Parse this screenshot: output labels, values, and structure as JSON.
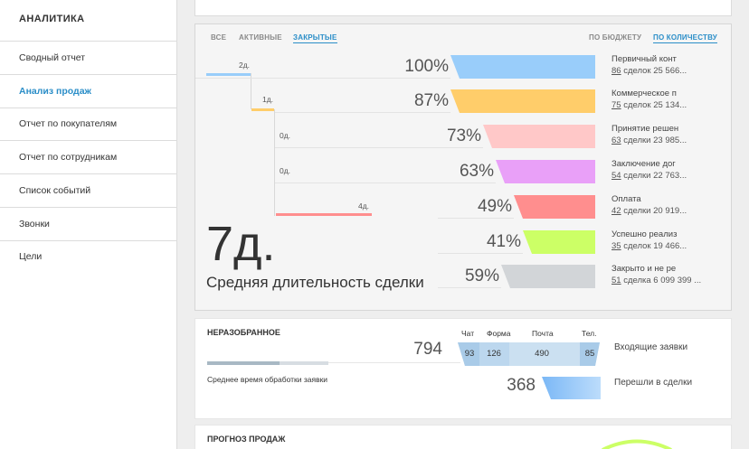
{
  "sidebar": {
    "title": "АНАЛИТИКА",
    "items": [
      {
        "label": "Сводный отчет",
        "active": false
      },
      {
        "label": "Анализ продаж",
        "active": true
      },
      {
        "label": "Отчет по покупателям",
        "active": false
      },
      {
        "label": "Отчет по сотрудникам",
        "active": false
      },
      {
        "label": "Список событий",
        "active": false
      },
      {
        "label": "Звонки",
        "active": false
      },
      {
        "label": "Цели",
        "active": false
      }
    ]
  },
  "funnel": {
    "filter_tabs": [
      "ВСЕ",
      "АКТИВНЫЕ",
      "ЗАКРЫТЫЕ"
    ],
    "active_filter": "ЗАКРЫТЫЕ",
    "mode_tabs": [
      "ПО БЮДЖЕТУ",
      "ПО КОЛИЧЕСТВУ"
    ],
    "active_mode": "ПО КОЛИЧЕСТВУ",
    "durations": [
      "2д.",
      "1д.",
      "0д.",
      "0д.",
      "4д."
    ],
    "stages": [
      {
        "percent": "100%",
        "name": "Первичный конт",
        "count": "86",
        "rest": " сделок 25 566...",
        "color": "#99cdfa"
      },
      {
        "percent": "87%",
        "name": "Коммерческое п",
        "count": "75",
        "rest": " сделок 25 134...",
        "color": "#ffcd6a"
      },
      {
        "percent": "73%",
        "name": "Принятие решен",
        "count": "63",
        "rest": " сделки 23 985...",
        "color": "#ffc8c8"
      },
      {
        "percent": "63%",
        "name": "Заключение дог",
        "count": "54",
        "rest": " сделки 22 763...",
        "color": "#e9a0f8"
      },
      {
        "percent": "49%",
        "name": "Оплата",
        "count": "42",
        "rest": " сделки 20 919...",
        "color": "#ff8e8e"
      },
      {
        "percent": "41%",
        "name": "Успешно реализ",
        "count": "35",
        "rest": " сделок 19 466...",
        "color": "#ccff66"
      },
      {
        "percent": "59%",
        "name": "Закрыто и не ре",
        "count": "51",
        "rest": " сделка 6 099 399 ...",
        "color": "#d2d5d8"
      }
    ],
    "avg_days": "7д.",
    "avg_caption": "Средняя длительность сделки"
  },
  "unsorted": {
    "title": "НЕРАЗОБРАННОЕ",
    "headers": [
      "Чат",
      "Форма",
      "Почта",
      "Тел."
    ],
    "incoming_total": "794",
    "incoming_values": [
      "93",
      "126",
      "490",
      "85"
    ],
    "incoming_label": "Входящие заявки",
    "converted_total": "368",
    "converted_label": "Перешли в сделки",
    "avg_time_label": "Среднее время обработки заявки"
  },
  "forecast": {
    "title": "ПРОГНОЗ ПРОДАЖ"
  }
}
